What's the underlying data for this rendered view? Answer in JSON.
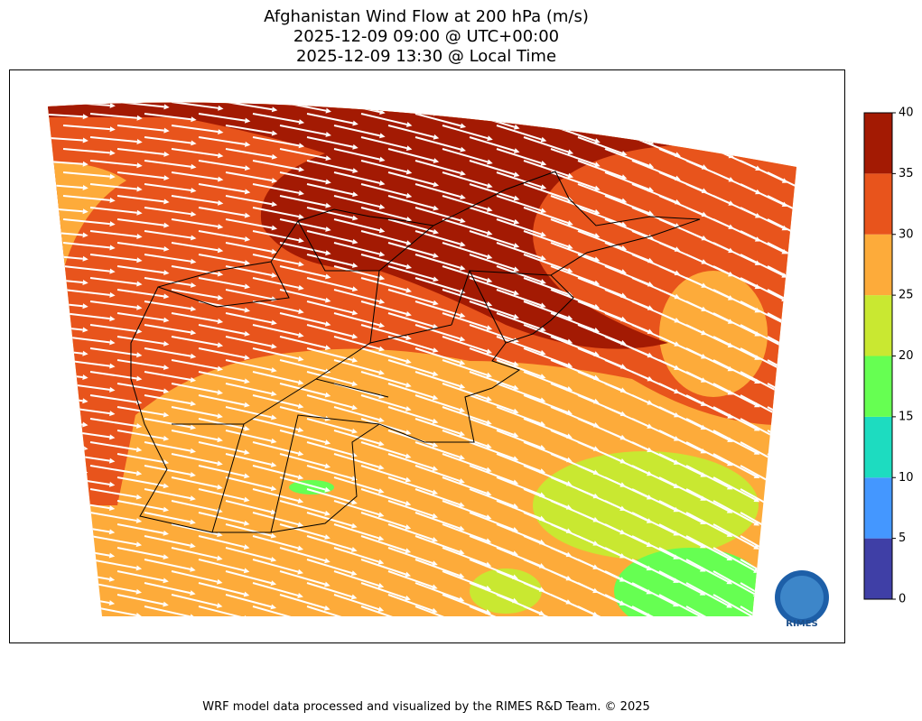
{
  "title": [
    "Afghanistan Wind Flow at 200 hPa (m/s)",
    "2025-12-09 09:00 @ UTC+00:00",
    "2025-12-09 13:30 @ Local Time"
  ],
  "colorbar": {
    "ticks": [
      0,
      5,
      10,
      15,
      20,
      25,
      30,
      35,
      40
    ],
    "colors": [
      "#3f3fa6",
      "#4497ff",
      "#1ddcc0",
      "#66ff52",
      "#c9e831",
      "#fdab3a",
      "#e8541c",
      "#a31a03"
    ]
  },
  "logo_text": "RIMES",
  "footer": "WRF model data processed and visualized by the RIMES R&D Team. © 2025"
}
